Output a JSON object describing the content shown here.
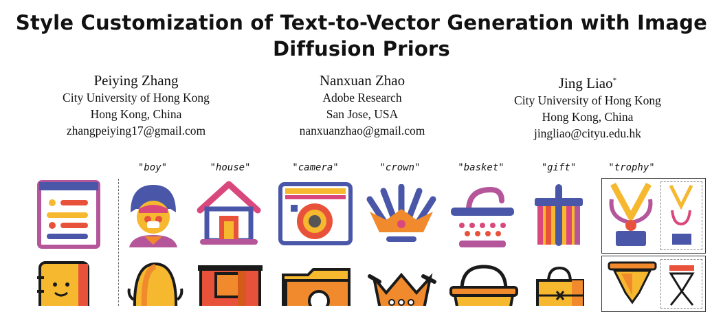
{
  "paper": {
    "title_line1": "Style Customization of Text-to-Vector Generation with Image",
    "title_line2": "Diffusion Priors"
  },
  "authors": [
    {
      "name": "Peiying Zhang",
      "affiliation": "City University of Hong Kong",
      "location": "Hong Kong, China",
      "email": "zhangpeiying17@gmail.com"
    },
    {
      "name": "Nanxuan Zhao",
      "affiliation": "Adobe Research",
      "location": "San Jose, USA",
      "email": "nanxuanzhao@gmail.com"
    },
    {
      "name": "Jing Liao",
      "mark": "*",
      "affiliation": "City University of Hong Kong",
      "location": "Hong Kong, China",
      "email": "jingliao@cityu.edu.hk"
    }
  ],
  "figure": {
    "labels": [
      "\"boy\"",
      "\"house\"",
      "\"camera\"",
      "\"crown\"",
      "\"basket\"",
      "\"gift\"",
      "\"trophy\""
    ],
    "icons_row1": [
      "list-icon",
      "boy-icon",
      "house-icon",
      "camera-icon",
      "crown-icon",
      "basket-icon",
      "gift-icon",
      "trophy-icon"
    ],
    "icons_row2": [
      "book-icon",
      "face-icon",
      "door-icon",
      "folder-icon",
      "crown-icon",
      "basket-icon",
      "bag-icon",
      "hourglass-icon"
    ],
    "colors": {
      "blue": "#4a57a8",
      "pink": "#d9487c",
      "yellow": "#f5b82e",
      "orange": "#f08a2c",
      "red": "#e8523a",
      "purple": "#b5559a",
      "dark": "#1a1a1a"
    }
  }
}
